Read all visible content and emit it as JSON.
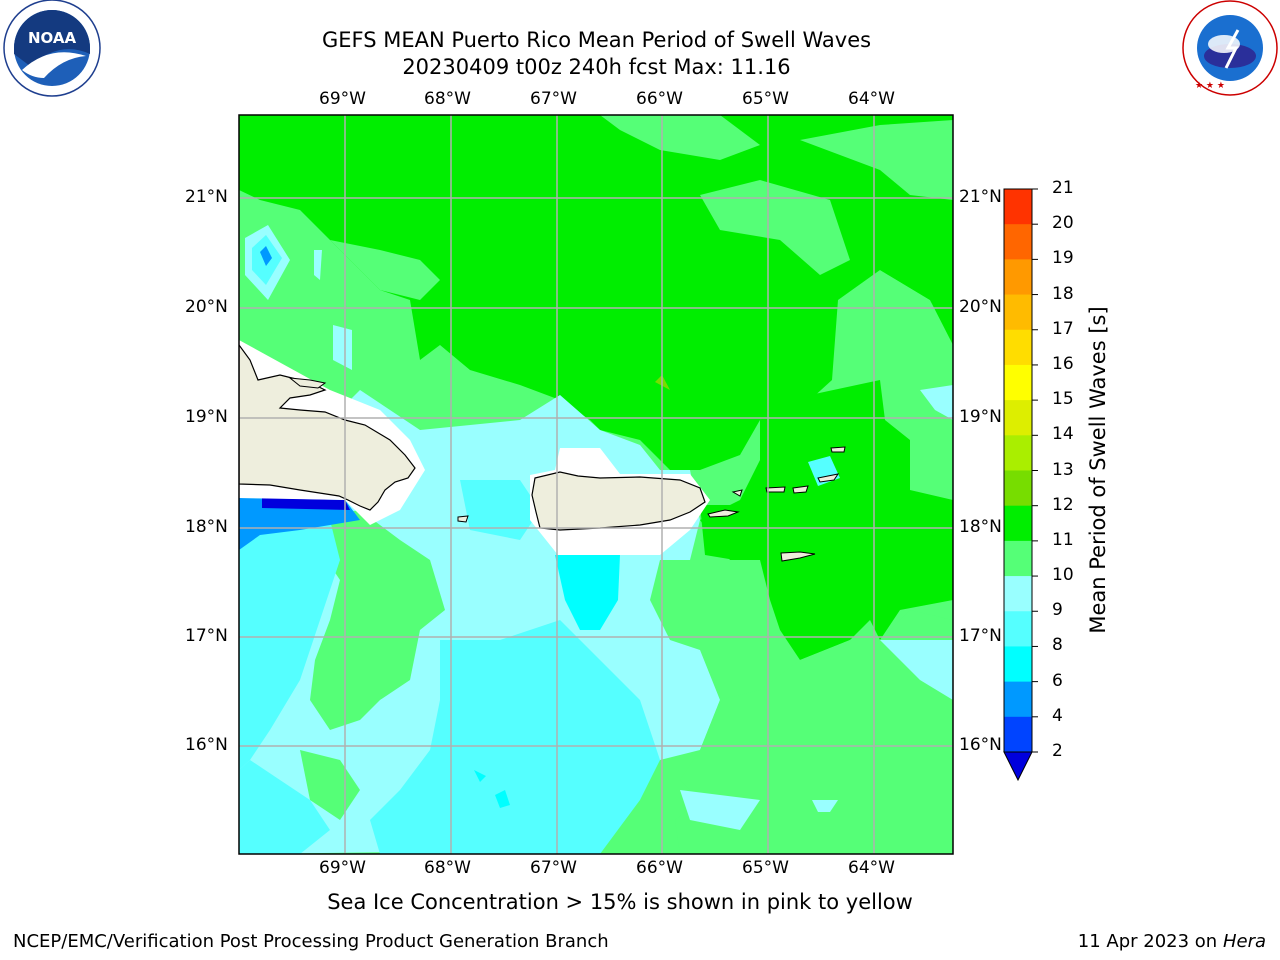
{
  "title_line1": "GEFS MEAN Puerto Rico Mean Period of Swell Waves",
  "title_line2": "20230409 t00z 240h fcst   Max: 11.16",
  "lon_labels": [
    "69°W",
    "68°W",
    "67°W",
    "66°W",
    "65°W",
    "64°W"
  ],
  "lat_labels": [
    "21°N",
    "20°N",
    "19°N",
    "18°N",
    "17°N",
    "16°N"
  ],
  "colorbar": {
    "title": "Mean Period of Swell Waves [s]",
    "ticks": [
      "21",
      "20",
      "19",
      "18",
      "17",
      "16",
      "15",
      "14",
      "13",
      "12",
      "11",
      "10",
      "9",
      "8",
      "6",
      "4",
      "2"
    ],
    "colors": [
      "#ff0000",
      "#ff3300",
      "#ff6600",
      "#ff9900",
      "#ffbb00",
      "#ffdd00",
      "#ffff00",
      "#ddee00",
      "#aaee00",
      "#77dd00",
      "#00ee00",
      "#55ff77",
      "#99ffff",
      "#55ffff",
      "#00ffff",
      "#0099ff",
      "#0044ff",
      "#0000dd"
    ]
  },
  "subnote": "Sea Ice Concentration > 15% is shown in pink to yellow",
  "footer_left": "NCEP/EMC/Verification Post Processing Product Generation Branch",
  "footer_right_date": "11 Apr 2023 on ",
  "footer_right_machine": "Hera",
  "logos": {
    "noaa_text": "NOAA",
    "noaa_ring": "NATIONAL OCEANIC AND ATMOSPHERIC ADMINISTRATION",
    "noaa_ring_bottom": "U.S. DEPARTMENT OF COMMERCE",
    "nws_ring": "NATIONAL WEATHER SERVICE"
  }
}
